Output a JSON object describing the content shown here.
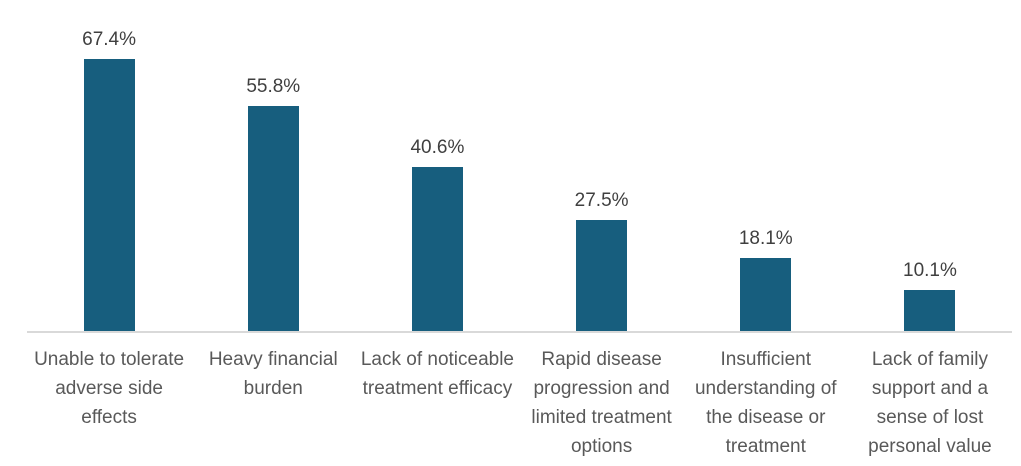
{
  "chart_data": {
    "type": "bar",
    "categories": [
      "Unable to tolerate adverse side effects",
      "Heavy financial burden",
      "Lack of noticeable treatment efficacy",
      "Rapid disease progression and limited treatment options",
      "Insufficient understanding of the disease or treatment",
      "Lack of family support and a sense of lost personal value"
    ],
    "values": [
      67.4,
      55.8,
      40.6,
      27.5,
      18.1,
      10.1
    ],
    "data_labels": [
      "67.4%",
      "55.8%",
      "40.6%",
      "27.5%",
      "18.1%",
      "10.1%"
    ],
    "title": "",
    "xlabel": "",
    "ylabel": "",
    "ylim": [
      0,
      82
    ],
    "grid": false,
    "legend": false,
    "colors": {
      "bar": "#175E7E",
      "axis_line": "#D9D9D9",
      "value_label": "#3F3F3F",
      "category_label": "#595959",
      "background": "#FFFFFF"
    }
  }
}
